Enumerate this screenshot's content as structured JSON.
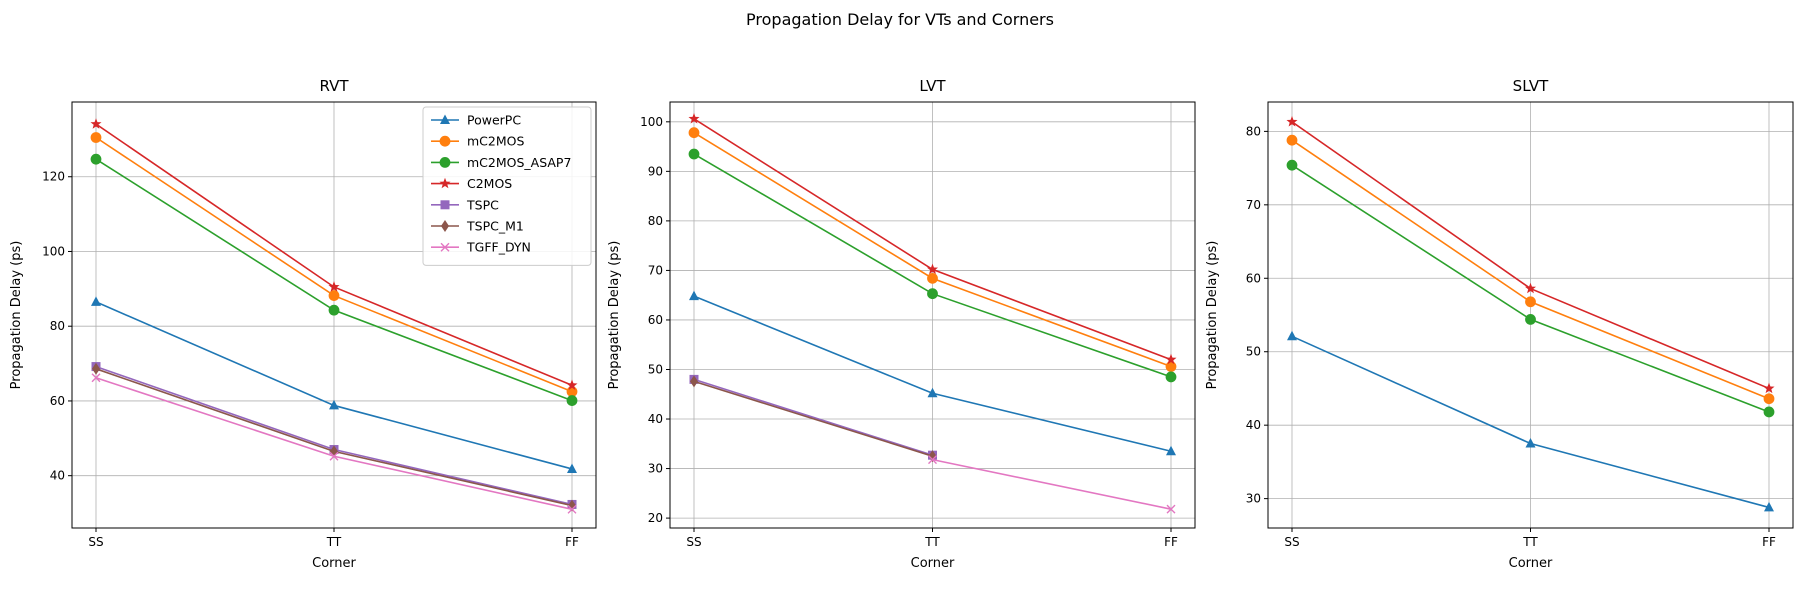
{
  "figure_title": "Propagation Delay for VTs and Corners",
  "chart_data": [
    {
      "type": "line",
      "title": "RVT",
      "xlabel": "Corner",
      "ylabel": "Propagation Delay (ps)",
      "categories": [
        "SS",
        "TT",
        "FF"
      ],
      "ylim": [
        26,
        140
      ],
      "yticks": [
        40,
        60,
        80,
        100,
        120
      ],
      "grid": true,
      "legend": "top-right",
      "series": [
        {
          "name": "PowerPC",
          "color": "#1f77b4",
          "marker": "triangle",
          "values": [
            86.5,
            58.8,
            41.8
          ]
        },
        {
          "name": "mC2MOS",
          "color": "#ff7f0e",
          "marker": "circle",
          "values": [
            130.5,
            88.2,
            62.5
          ]
        },
        {
          "name": "mC2MOS_ASAP7",
          "color": "#2ca02c",
          "marker": "circle",
          "values": [
            124.7,
            84.3,
            60.1
          ]
        },
        {
          "name": "C2MOS",
          "color": "#d62728",
          "marker": "star",
          "values": [
            134.1,
            90.5,
            64.2
          ]
        },
        {
          "name": "TSPC",
          "color": "#9467bd",
          "marker": "square",
          "values": [
            69.2,
            47.0,
            32.3
          ]
        },
        {
          "name": "TSPC_M1",
          "color": "#8c564b",
          "marker": "diamond",
          "values": [
            68.6,
            46.5,
            32.0
          ]
        },
        {
          "name": "TGFF_DYN",
          "color": "#e377c2",
          "marker": "x",
          "values": [
            66.2,
            45.2,
            31.0
          ]
        }
      ]
    },
    {
      "type": "line",
      "title": "LVT",
      "xlabel": "Corner",
      "ylabel": "Propagation Delay (ps)",
      "categories": [
        "SS",
        "TT",
        "FF"
      ],
      "ylim": [
        18,
        104
      ],
      "yticks": [
        20,
        30,
        40,
        50,
        60,
        70,
        80,
        90,
        100
      ],
      "grid": true,
      "series": [
        {
          "name": "PowerPC",
          "color": "#1f77b4",
          "marker": "triangle",
          "values": [
            64.8,
            45.2,
            33.5
          ]
        },
        {
          "name": "mC2MOS",
          "color": "#ff7f0e",
          "marker": "circle",
          "values": [
            97.8,
            68.4,
            50.6
          ]
        },
        {
          "name": "mC2MOS_ASAP7",
          "color": "#2ca02c",
          "marker": "circle",
          "values": [
            93.5,
            65.3,
            48.5
          ]
        },
        {
          "name": "C2MOS",
          "color": "#d62728",
          "marker": "star",
          "values": [
            100.6,
            70.2,
            52.0
          ]
        },
        {
          "name": "TSPC",
          "color": "#9467bd",
          "marker": "square",
          "values": [
            48.0,
            32.7,
            null
          ]
        },
        {
          "name": "TSPC_M1",
          "color": "#8c564b",
          "marker": "diamond",
          "values": [
            47.6,
            32.5,
            null
          ]
        },
        {
          "name": "TGFF_DYN",
          "color": "#e377c2",
          "marker": "x",
          "values": [
            null,
            31.8,
            21.8
          ]
        }
      ]
    },
    {
      "type": "line",
      "title": "SLVT",
      "xlabel": "Corner",
      "ylabel": "Propagation Delay (ps)",
      "categories": [
        "SS",
        "TT",
        "FF"
      ],
      "ylim": [
        26,
        84
      ],
      "yticks": [
        30,
        40,
        50,
        60,
        70,
        80
      ],
      "grid": true,
      "series": [
        {
          "name": "PowerPC",
          "color": "#1f77b4",
          "marker": "triangle",
          "values": [
            52.1,
            37.5,
            28.8
          ]
        },
        {
          "name": "mC2MOS",
          "color": "#ff7f0e",
          "marker": "circle",
          "values": [
            78.8,
            56.8,
            43.6
          ]
        },
        {
          "name": "mC2MOS_ASAP7",
          "color": "#2ca02c",
          "marker": "circle",
          "values": [
            75.4,
            54.4,
            41.8
          ]
        },
        {
          "name": "C2MOS",
          "color": "#d62728",
          "marker": "star",
          "values": [
            81.3,
            58.6,
            45.0
          ]
        }
      ]
    }
  ]
}
